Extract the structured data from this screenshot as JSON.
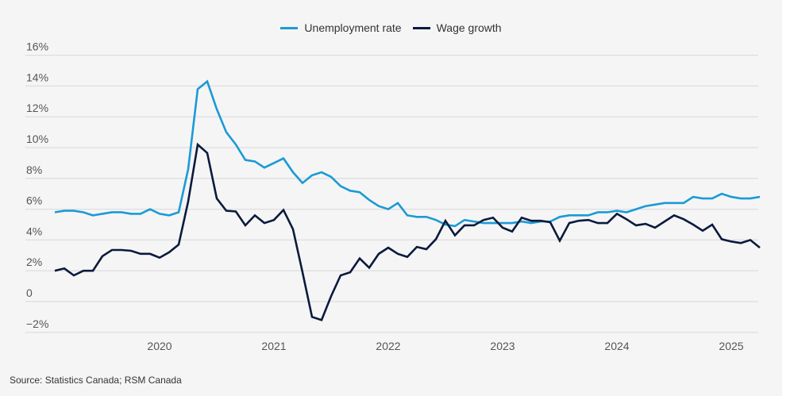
{
  "chart_data": {
    "type": "line",
    "title": "",
    "xlabel": "",
    "ylabel": "",
    "ylim": [
      -2,
      16
    ],
    "y_ticks": [
      16,
      14,
      12,
      10,
      8,
      6,
      4,
      2,
      0,
      -2
    ],
    "y_tick_labels": [
      "16%",
      "14%",
      "12%",
      "10%",
      "8%",
      "6%",
      "4%",
      "2%",
      "0",
      "−2%"
    ],
    "x_tick_labels": [
      "2020",
      "2021",
      "2022",
      "2023",
      "2024",
      "2025"
    ],
    "x_tick_months": [
      "2020-01",
      "2021-01",
      "2022-01",
      "2023-01",
      "2024-01",
      "2025-01"
    ],
    "grid": "horizontal",
    "legend_position": "top-center",
    "x": [
      "2019-02",
      "2019-03",
      "2019-04",
      "2019-05",
      "2019-06",
      "2019-07",
      "2019-08",
      "2019-09",
      "2019-10",
      "2019-11",
      "2019-12",
      "2020-01",
      "2020-02",
      "2020-03",
      "2020-04",
      "2020-05",
      "2020-06",
      "2020-07",
      "2020-08",
      "2020-09",
      "2020-10",
      "2020-11",
      "2020-12",
      "2021-01",
      "2021-02",
      "2021-03",
      "2021-04",
      "2021-05",
      "2021-06",
      "2021-07",
      "2021-08",
      "2021-09",
      "2021-10",
      "2021-11",
      "2021-12",
      "2022-01",
      "2022-02",
      "2022-03",
      "2022-04",
      "2022-05",
      "2022-06",
      "2022-07",
      "2022-08",
      "2022-09",
      "2022-10",
      "2022-11",
      "2022-12",
      "2023-01",
      "2023-02",
      "2023-03",
      "2023-04",
      "2023-05",
      "2023-06",
      "2023-07",
      "2023-08",
      "2023-09",
      "2023-10",
      "2023-11",
      "2023-12",
      "2024-01",
      "2024-02",
      "2024-03",
      "2024-04",
      "2024-05",
      "2024-06",
      "2024-07",
      "2024-08",
      "2024-09",
      "2024-10",
      "2024-11",
      "2024-12",
      "2025-01",
      "2025-02",
      "2025-03",
      "2025-04"
    ],
    "series": [
      {
        "name": "Unemployment rate",
        "color": "#1b9ad6",
        "values": [
          5.8,
          5.9,
          5.9,
          5.8,
          5.6,
          5.7,
          5.8,
          5.8,
          5.7,
          5.7,
          6.0,
          5.7,
          5.6,
          5.8,
          8.6,
          13.8,
          14.3,
          12.5,
          11.0,
          10.2,
          9.2,
          9.1,
          8.7,
          9.0,
          9.3,
          8.4,
          7.7,
          8.2,
          8.4,
          8.1,
          7.5,
          7.2,
          7.1,
          6.6,
          6.2,
          6.0,
          6.4,
          5.6,
          5.5,
          5.5,
          5.3,
          5.0,
          4.9,
          5.3,
          5.2,
          5.1,
          5.1,
          5.1,
          5.1,
          5.2,
          5.1,
          5.2,
          5.2,
          5.5,
          5.6,
          5.6,
          5.6,
          5.8,
          5.8,
          5.9,
          5.8,
          6.0,
          6.2,
          6.3,
          6.4,
          6.4,
          6.4,
          6.8,
          6.7,
          6.7,
          7.0,
          6.8,
          6.7,
          6.7,
          6.8
        ]
      },
      {
        "name": "Wage growth",
        "color": "#0b1a3d",
        "values": [
          2.0,
          2.15,
          1.7,
          2.0,
          2.0,
          2.95,
          3.35,
          3.35,
          3.3,
          3.1,
          3.1,
          2.85,
          3.2,
          3.7,
          6.5,
          10.2,
          9.65,
          6.7,
          5.9,
          5.85,
          4.95,
          5.6,
          5.1,
          5.3,
          5.95,
          4.7,
          1.9,
          -1.0,
          -1.2,
          0.35,
          1.7,
          1.9,
          2.8,
          2.2,
          3.1,
          3.5,
          3.1,
          2.9,
          3.55,
          3.4,
          4.05,
          5.25,
          4.3,
          4.95,
          4.95,
          5.3,
          5.45,
          4.8,
          4.55,
          5.45,
          5.25,
          5.25,
          5.15,
          3.95,
          5.1,
          5.25,
          5.3,
          5.1,
          5.1,
          5.7,
          5.35,
          4.95,
          5.05,
          4.8,
          5.2,
          5.6,
          5.35,
          5.0,
          4.6,
          5.0,
          4.05,
          3.9,
          3.8,
          4.0,
          3.5
        ]
      }
    ]
  },
  "legend": {
    "items": [
      "Unemployment rate",
      "Wage growth"
    ]
  },
  "source": "Source: Statistics Canada; RSM Canada"
}
